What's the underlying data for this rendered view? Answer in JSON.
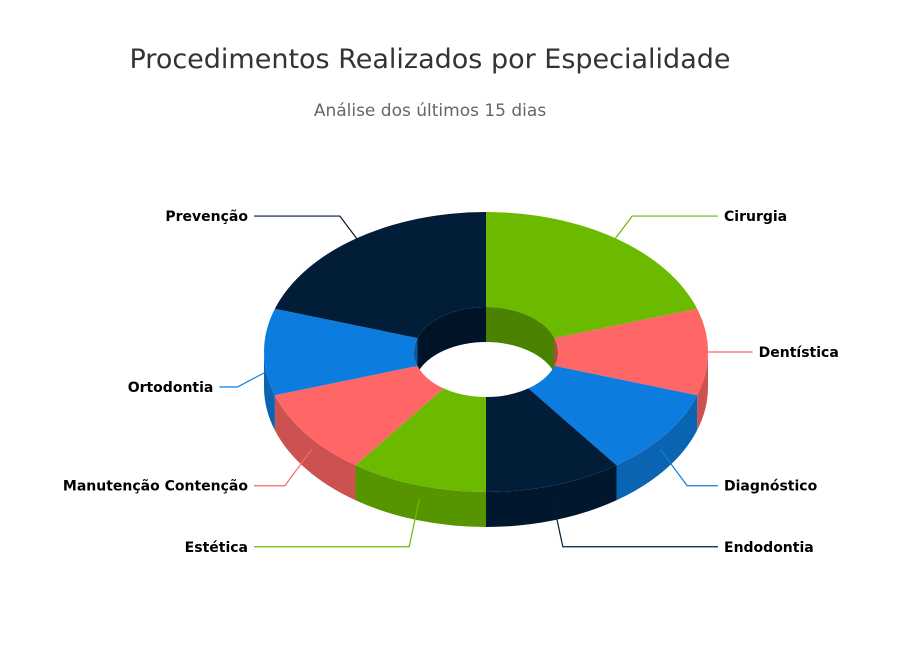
{
  "chart_data": {
    "type": "pie",
    "variant": "3d-donut",
    "title": "Procedimentos Realizados por Especialidade",
    "subtitle": "Análise dos últimos 15 dias",
    "categories": [
      "Cirurgia",
      "Dentística",
      "Diagnóstico",
      "Endodontia",
      "Estética",
      "Manutenção Contenção",
      "Ortodontia",
      "Prevenção"
    ],
    "values": [
      2,
      1,
      1,
      1,
      1,
      1,
      1,
      2
    ],
    "colors": [
      "#6bba00",
      "#ff6666",
      "#0c7ddf",
      "#011d38",
      "#6bba00",
      "#ff6666",
      "#0c7ddf",
      "#011d38"
    ],
    "legend": "none",
    "data_labels": true
  }
}
